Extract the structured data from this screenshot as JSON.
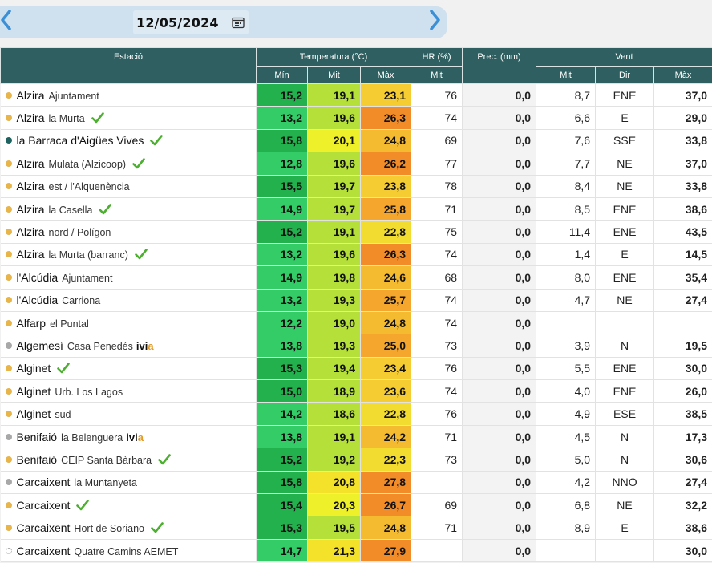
{
  "date_nav": {
    "date": "12/05/2024",
    "prev_icon": "chevron-left-icon",
    "next_icon": "chevron-right-icon",
    "calendar_icon": "calendar-icon",
    "accent_color": "#3a8fd6"
  },
  "headers": {
    "station": "Estació",
    "temperature": "Temperatura (°C)",
    "hr": "HR (%)",
    "prec": "Prec. (mm)",
    "wind": "Vent",
    "t_min": "Mín",
    "t_mit": "Mit",
    "t_max": "Màx",
    "hr_mit": "Mit",
    "w_mit": "Mit",
    "w_dir": "Dir",
    "w_max": "Màx"
  },
  "colors": {
    "header_bg": "#2f5f60",
    "dot_yellow": "#e8b54a",
    "dot_teal": "#1f6360",
    "dot_gray": "#a8a8a8",
    "dot_empty": "#ffffff",
    "check_green": "#4caf2f"
  },
  "rows": [
    {
      "name": "Alzira",
      "sub": "Ajuntament",
      "dot": "yellow",
      "check": false,
      "ivia": false,
      "tmin": "15,2",
      "tmit": "19,1",
      "tmax": "23,1",
      "hr": "76",
      "prec": "0,0",
      "wmit": "8,7",
      "wdir": "ENE",
      "wmax": "37,0"
    },
    {
      "name": "Alzira",
      "sub": "la Murta",
      "dot": "yellow",
      "check": true,
      "ivia": false,
      "tmin": "13,2",
      "tmit": "19,6",
      "tmax": "26,3",
      "hr": "74",
      "prec": "0,0",
      "wmit": "6,6",
      "wdir": "E",
      "wmax": "29,0"
    },
    {
      "name": "la Barraca d'Aigües Vives",
      "sub": "",
      "dot": "teal",
      "check": true,
      "ivia": false,
      "tmin": "15,8",
      "tmit": "20,1",
      "tmax": "24,8",
      "hr": "69",
      "prec": "0,0",
      "wmit": "7,6",
      "wdir": "SSE",
      "wmax": "33,8"
    },
    {
      "name": "Alzira",
      "sub": "Mulata (Alzicoop)",
      "dot": "yellow",
      "check": true,
      "ivia": false,
      "tmin": "12,8",
      "tmit": "19,6",
      "tmax": "26,2",
      "hr": "77",
      "prec": "0,0",
      "wmit": "7,7",
      "wdir": "NE",
      "wmax": "37,0"
    },
    {
      "name": "Alzira",
      "sub": "est / l'Alquenència",
      "dot": "yellow",
      "check": false,
      "ivia": false,
      "tmin": "15,5",
      "tmit": "19,7",
      "tmax": "23,8",
      "hr": "78",
      "prec": "0,0",
      "wmit": "8,4",
      "wdir": "NE",
      "wmax": "33,8"
    },
    {
      "name": "Alzira",
      "sub": "la Casella",
      "dot": "yellow",
      "check": true,
      "ivia": false,
      "tmin": "14,9",
      "tmit": "19,7",
      "tmax": "25,8",
      "hr": "71",
      "prec": "0,0",
      "wmit": "8,5",
      "wdir": "ENE",
      "wmax": "38,6"
    },
    {
      "name": "Alzira",
      "sub": "nord / Polígon",
      "dot": "yellow",
      "check": false,
      "ivia": false,
      "tmin": "15,2",
      "tmit": "19,1",
      "tmax": "22,8",
      "hr": "75",
      "prec": "0,0",
      "wmit": "11,4",
      "wdir": "ENE",
      "wmax": "43,5"
    },
    {
      "name": "Alzira",
      "sub": "la Murta (barranc)",
      "dot": "yellow",
      "check": true,
      "ivia": false,
      "tmin": "13,2",
      "tmit": "19,6",
      "tmax": "26,3",
      "hr": "74",
      "prec": "0,0",
      "wmit": "1,4",
      "wdir": "E",
      "wmax": "14,5"
    },
    {
      "name": "l'Alcúdia",
      "sub": "Ajuntament",
      "dot": "yellow",
      "check": false,
      "ivia": false,
      "tmin": "14,9",
      "tmit": "19,8",
      "tmax": "24,6",
      "hr": "68",
      "prec": "0,0",
      "wmit": "8,0",
      "wdir": "ENE",
      "wmax": "35,4"
    },
    {
      "name": "l'Alcúdia",
      "sub": "Carriona",
      "dot": "yellow",
      "check": false,
      "ivia": false,
      "tmin": "13,2",
      "tmit": "19,3",
      "tmax": "25,7",
      "hr": "74",
      "prec": "0,0",
      "wmit": "4,7",
      "wdir": "NE",
      "wmax": "27,4"
    },
    {
      "name": "Alfarp",
      "sub": "el Puntal",
      "dot": "yellow",
      "check": false,
      "ivia": false,
      "tmin": "12,2",
      "tmit": "19,0",
      "tmax": "24,8",
      "hr": "74",
      "prec": "0,0",
      "wmit": "",
      "wdir": "",
      "wmax": ""
    },
    {
      "name": "Algemesí",
      "sub": "Casa Penedés",
      "dot": "gray",
      "check": false,
      "ivia": true,
      "tmin": "13,8",
      "tmit": "19,3",
      "tmax": "25,0",
      "hr": "73",
      "prec": "0,0",
      "wmit": "3,9",
      "wdir": "N",
      "wmax": "19,5"
    },
    {
      "name": "Alginet",
      "sub": "",
      "dot": "yellow",
      "check": true,
      "ivia": false,
      "tmin": "15,3",
      "tmit": "19,4",
      "tmax": "23,4",
      "hr": "76",
      "prec": "0,0",
      "wmit": "5,5",
      "wdir": "ENE",
      "wmax": "30,0"
    },
    {
      "name": "Alginet",
      "sub": "Urb. Los Lagos",
      "dot": "yellow",
      "check": false,
      "ivia": false,
      "tmin": "15,0",
      "tmit": "18,9",
      "tmax": "23,6",
      "hr": "74",
      "prec": "0,0",
      "wmit": "4,0",
      "wdir": "ENE",
      "wmax": "26,0"
    },
    {
      "name": "Alginet",
      "sub": "sud",
      "dot": "yellow",
      "check": false,
      "ivia": false,
      "tmin": "14,2",
      "tmit": "18,6",
      "tmax": "22,8",
      "hr": "76",
      "prec": "0,0",
      "wmit": "4,9",
      "wdir": "ESE",
      "wmax": "38,5"
    },
    {
      "name": "Benifaió",
      "sub": "la Belenguera",
      "dot": "gray",
      "check": false,
      "ivia": true,
      "tmin": "13,8",
      "tmit": "19,1",
      "tmax": "24,2",
      "hr": "71",
      "prec": "0,0",
      "wmit": "4,5",
      "wdir": "N",
      "wmax": "17,3"
    },
    {
      "name": "Benifaió",
      "sub": "CEIP Santa Bàrbara",
      "dot": "yellow",
      "check": true,
      "ivia": false,
      "tmin": "15,2",
      "tmit": "19,2",
      "tmax": "22,3",
      "hr": "73",
      "prec": "0,0",
      "wmit": "5,0",
      "wdir": "N",
      "wmax": "30,6"
    },
    {
      "name": "Carcaixent",
      "sub": "la Muntanyeta",
      "dot": "gray",
      "check": false,
      "ivia": false,
      "tmin": "15,8",
      "tmit": "20,8",
      "tmax": "27,8",
      "hr": "",
      "prec": "0,0",
      "wmit": "4,2",
      "wdir": "NNO",
      "wmax": "27,4"
    },
    {
      "name": "Carcaixent",
      "sub": "",
      "dot": "yellow",
      "check": true,
      "ivia": false,
      "tmin": "15,4",
      "tmit": "20,3",
      "tmax": "26,7",
      "hr": "69",
      "prec": "0,0",
      "wmit": "6,8",
      "wdir": "NE",
      "wmax": "32,2"
    },
    {
      "name": "Carcaixent",
      "sub": "Hort de Soriano",
      "dot": "yellow",
      "check": true,
      "ivia": false,
      "tmin": "15,3",
      "tmit": "19,5",
      "tmax": "24,8",
      "hr": "71",
      "prec": "0,0",
      "wmit": "8,9",
      "wdir": "E",
      "wmax": "38,6"
    },
    {
      "name": "Carcaixent",
      "sub": "Quatre Camins AEMET",
      "dot": "empty",
      "check": false,
      "ivia": false,
      "tmin": "14,7",
      "tmit": "21,3",
      "tmax": "27,9",
      "hr": "",
      "prec": "0,0",
      "wmit": "",
      "wdir": "",
      "wmax": "30,0"
    }
  ],
  "ivia_label": {
    "i": "ivi",
    "a": "a"
  }
}
